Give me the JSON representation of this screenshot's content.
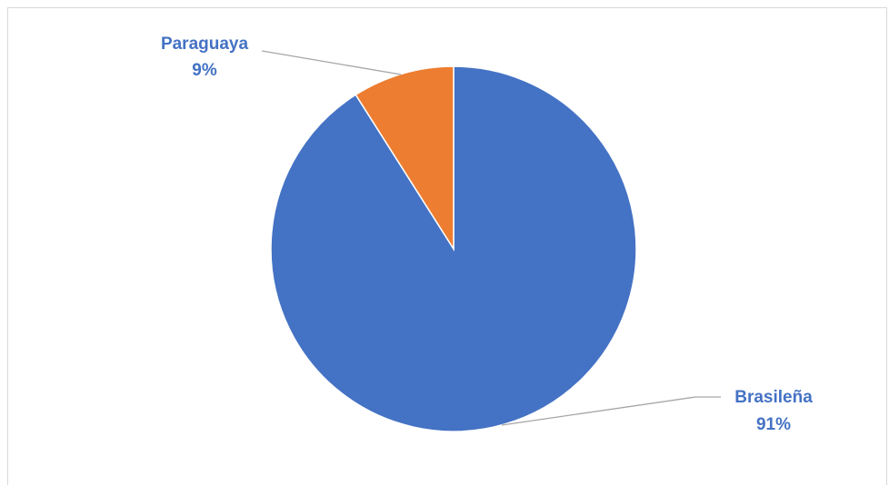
{
  "chart_data": {
    "type": "pie",
    "categories": [
      "Brasileña",
      "Paraguaya"
    ],
    "values": [
      91,
      9
    ],
    "value_labels": [
      "91%",
      "9%"
    ],
    "colors": [
      "#4472C4",
      "#ED7D31"
    ],
    "label_color": "#4472C4",
    "leader_line_color": "#a6a6a6",
    "legend": "none",
    "title": ""
  }
}
